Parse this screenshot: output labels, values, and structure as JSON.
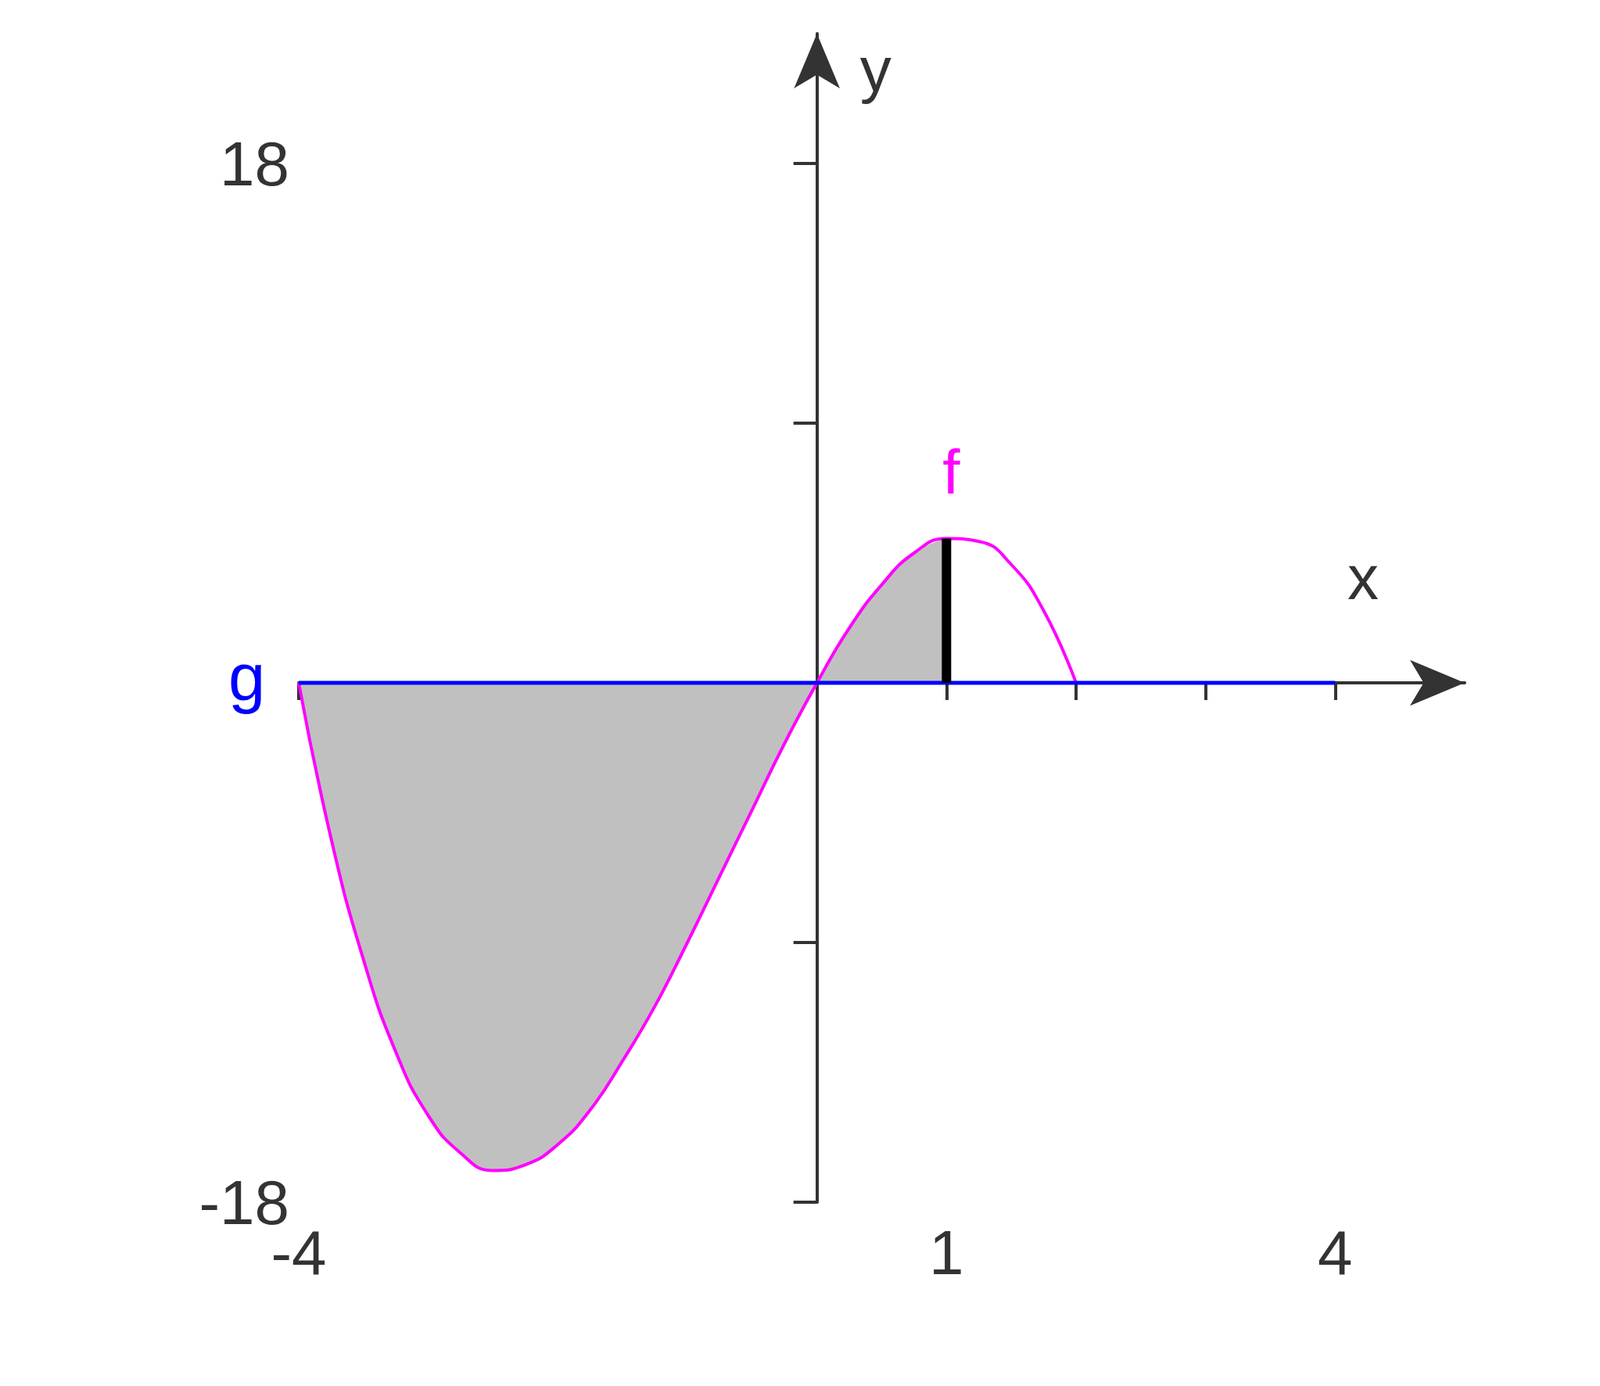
{
  "chart_data": {
    "type": "line",
    "xlim": [
      -4,
      5
    ],
    "ylim": [
      -18,
      22.5
    ],
    "xticks": [
      -4,
      1,
      4
    ],
    "xtick_marks": [
      -4,
      -3,
      -2,
      -1,
      1,
      2,
      3,
      4
    ],
    "yticks": [
      -18,
      18
    ],
    "ytick_marks": [
      -18,
      -9,
      9,
      18
    ],
    "x_label": "x",
    "y_label": "y",
    "grid": false,
    "legend": false,
    "series": [
      {
        "name": "f",
        "color": "#ff00ff",
        "x": [
          -4,
          -3.75,
          -3.5,
          -3.25,
          -3,
          -2.75,
          -2.5,
          -2.25,
          -2,
          -1.75,
          -1.5,
          -1.25,
          -1,
          -0.75,
          -0.5,
          -0.25,
          0,
          0.25,
          0.5,
          0.75,
          1,
          1.25,
          1.5,
          1.75,
          2
        ],
        "values": [
          0,
          -5.4,
          -9.6,
          -12.8,
          -15,
          -16.3,
          -16.9,
          -16.7,
          -16,
          -14.8,
          -13.1,
          -11.2,
          -9,
          -6.7,
          -4.4,
          -2.1,
          0,
          1.9,
          3.4,
          4.5,
          5,
          4.9,
          4.1,
          2.5,
          0
        ]
      },
      {
        "name": "g",
        "color": "#0000ff",
        "x": [
          -4,
          4
        ],
        "values": [
          0,
          0
        ]
      }
    ],
    "shaded": {
      "x": [
        -4,
        1
      ],
      "color": "#c0c0c0"
    },
    "marked": {
      "x": 1,
      "color": "#000000"
    }
  }
}
